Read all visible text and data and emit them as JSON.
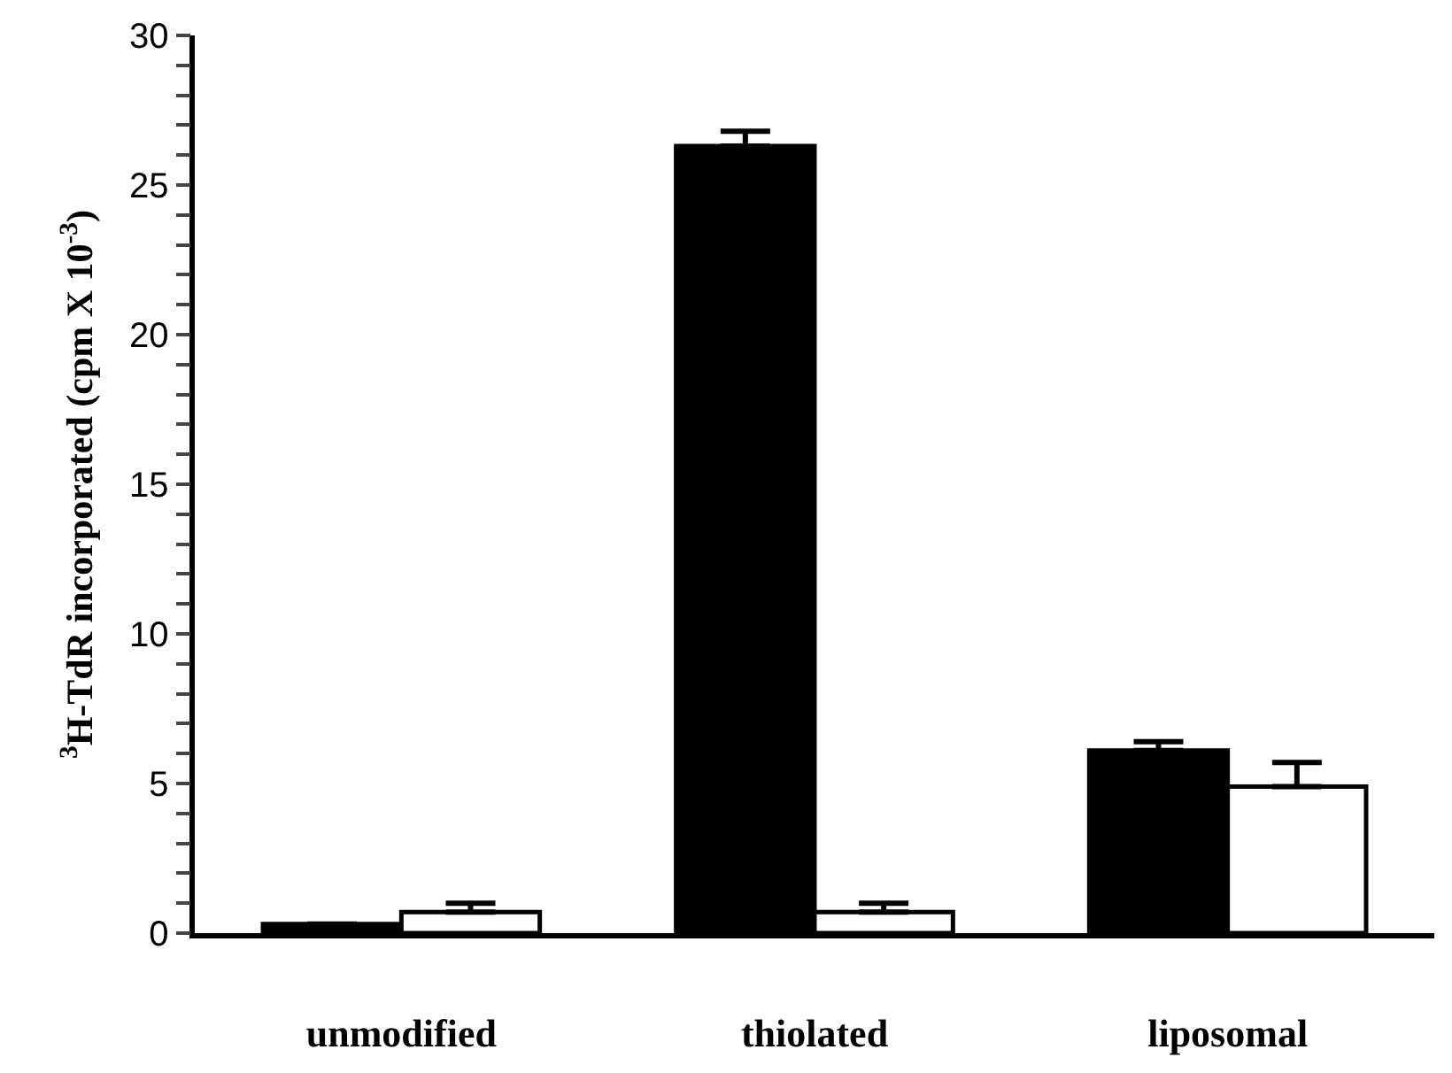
{
  "chart_data": {
    "type": "bar",
    "ylabel": "$^{3}$H-TdR incorporated (cpm X 10$^{-3}$)",
    "categories": [
      "unmodified",
      "thiolated",
      "liposomal"
    ],
    "series": [
      {
        "color": "#000000",
        "values": [
          0.3,
          26.3,
          6.1
        ],
        "errors": [
          null,
          [
            26.3,
            26.8
          ],
          [
            6.1,
            6.4
          ]
        ]
      },
      {
        "color": "#ffffff",
        "values": [
          0.7,
          0.7,
          4.9
        ],
        "errors": [
          [
            0.7,
            1.0
          ],
          [
            0.7,
            1.0
          ],
          [
            4.9,
            5.7
          ]
        ]
      }
    ],
    "ylim": [
      0,
      30
    ],
    "yticks": [
      0,
      {
        "value": 1,
        "label": null
      },
      {
        "value": 2,
        "label": null
      },
      {
        "value": 3,
        "label": null
      },
      {
        "value": 4,
        "label": null
      },
      5,
      {
        "value": 6,
        "label": null
      },
      {
        "value": 7,
        "label": null
      },
      {
        "value": 8,
        "label": null
      },
      {
        "value": 9,
        "label": null
      },
      10,
      {
        "value": 11,
        "label": null
      },
      {
        "value": 12,
        "label": null
      },
      {
        "value": 13,
        "label": null
      },
      {
        "value": 14,
        "label": null
      },
      15,
      {
        "value": 16,
        "label": null
      },
      {
        "value": 17,
        "label": null
      },
      {
        "value": 18,
        "label": null
      },
      {
        "value": 19,
        "label": null
      },
      20,
      {
        "value": 21,
        "label": null
      },
      {
        "value": 22,
        "label": null
      },
      {
        "value": 23,
        "label": null
      },
      {
        "value": 24,
        "label": null
      },
      25,
      {
        "value": 26,
        "label": null
      },
      {
        "value": 27,
        "label": null
      },
      {
        "value": 28,
        "label": null
      },
      {
        "value": 29,
        "label": null
      },
      30
    ]
  }
}
